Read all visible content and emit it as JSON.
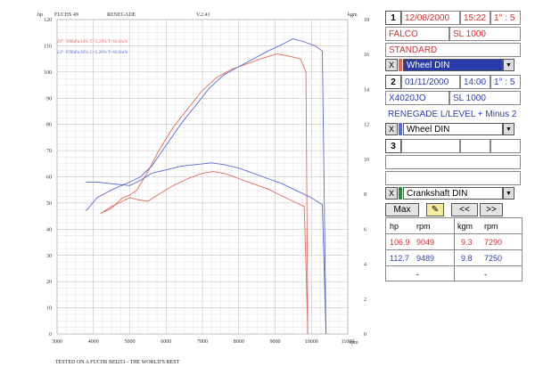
{
  "chart_data": {
    "type": "line",
    "header": {
      "left": "FUCHS 49",
      "center": "RENEGADE",
      "version": "V.2.41"
    },
    "y_left_unit": "hp",
    "y_right_unit": "kgm",
    "x_unit": "rpm",
    "x_ticks": [
      "3000",
      "4000",
      "5000",
      "6000",
      "7000",
      "8000",
      "9000",
      "10000",
      "11000"
    ],
    "y_left_ticks": [
      "0",
      "10",
      "20",
      "30",
      "40",
      "50",
      "60",
      "70",
      "80",
      "90",
      "100",
      "110",
      "120"
    ],
    "y_right_ticks": [
      "0",
      "2",
      "4",
      "6",
      "8",
      "10",
      "12",
      "14",
      "16",
      "18"
    ],
    "xlim": [
      3000,
      11000
    ],
    "ylim_left": [
      0,
      120
    ],
    "ylim_right": [
      0,
      18
    ],
    "legend": [
      {
        "text": "20°- 998hPa 44% C=5.21% T=18.6mN",
        "color": "#e06a5a"
      },
      {
        "text": "23°- 978hPa 40% C=5.26% T=18.9mN",
        "color": "#5a6ad0"
      }
    ],
    "series": [
      {
        "axis": "left",
        "color": "#e06a5a",
        "x": [
          4200,
          4500,
          4800,
          5000,
          5200,
          5500,
          5800,
          6200,
          6600,
          7000,
          7400,
          7800,
          8200,
          8600,
          9049,
          9400,
          9700,
          9850,
          9900
        ],
        "y": [
          46,
          48,
          52,
          53,
          55,
          62,
          70,
          79,
          86,
          93,
          98,
          101,
          103,
          105,
          106.9,
          106,
          105,
          100,
          0
        ]
      },
      {
        "axis": "left",
        "color": "#5a6ad0",
        "x": [
          3800,
          4100,
          4500,
          5000,
          5300,
          5600,
          6000,
          6400,
          6800,
          7200,
          7600,
          8000,
          8400,
          8800,
          9200,
          9489,
          9800,
          10100,
          10300,
          10400
        ],
        "y": [
          47,
          52,
          55,
          58,
          60,
          64,
          72,
          80,
          87,
          94,
          99,
          102,
          105,
          108,
          110.5,
          112.7,
          111.5,
          110,
          108,
          0
        ]
      },
      {
        "axis": "right",
        "color": "#e06a5a",
        "x": [
          4200,
          4500,
          4800,
          5000,
          5200,
          5500,
          5800,
          6200,
          6600,
          7000,
          7290,
          7600,
          8000,
          8400,
          8800,
          9200,
          9500,
          9800,
          9850,
          9900
        ],
        "y": [
          6.9,
          7.3,
          7.6,
          7.8,
          7.7,
          7.6,
          8.0,
          8.5,
          8.9,
          9.2,
          9.3,
          9.2,
          8.9,
          8.6,
          8.3,
          7.9,
          7.6,
          7.3,
          4.0,
          0
        ]
      },
      {
        "axis": "right",
        "color": "#5a6ad0",
        "x": [
          3800,
          4100,
          4500,
          5000,
          5300,
          5600,
          6000,
          6400,
          6800,
          7250,
          7600,
          8000,
          8400,
          8800,
          9200,
          9600,
          10000,
          10300,
          10400
        ],
        "y": [
          8.7,
          8.7,
          8.6,
          8.5,
          8.8,
          9.2,
          9.4,
          9.6,
          9.7,
          9.8,
          9.7,
          9.5,
          9.2,
          8.9,
          8.6,
          8.2,
          7.8,
          7.4,
          0
        ]
      }
    ]
  },
  "panel": {
    "run1": {
      "num": "1",
      "date": "12/08/2000",
      "time": "15:22",
      "gear": "1° : 5",
      "name": "FALCO",
      "model": "SL 1000",
      "note": "STANDARD",
      "x_label": "X",
      "mode": "Wheel DIN"
    },
    "run2": {
      "num": "2",
      "date": "01/11/2000",
      "time": "14:00",
      "gear": "1° : 5",
      "name": "X4020JO",
      "model": "SL 1000",
      "note": "RENEGADE L/LEVEL + Minus 2",
      "x_label": "X",
      "mode": "Wheel DIN"
    },
    "run3": {
      "num": "3"
    },
    "crank": {
      "x_label": "X",
      "mode": "Crankshaft DIN"
    },
    "buttons": {
      "max": "Max",
      "pen": "✎",
      "prev": "<<",
      "next": ">>"
    },
    "table": {
      "h_hp": "hp",
      "h_rpm": "rpm",
      "h_kgm": "kgm",
      "h_rpm2": "rpm",
      "r1": {
        "hp": "106.9",
        "rpm": "9049",
        "kgm": "9.3",
        "rpm2": "7290"
      },
      "r2": {
        "hp": "112.7",
        "rpm": "9489",
        "kgm": "9.8",
        "rpm2": "7250"
      },
      "r3": {
        "hp": "-",
        "rpm": "-",
        "kgm": "-",
        "rpm2": "-"
      }
    }
  },
  "footer": "TESTED ON A FUCHS BEI251 - THE WORLD'S BEST"
}
